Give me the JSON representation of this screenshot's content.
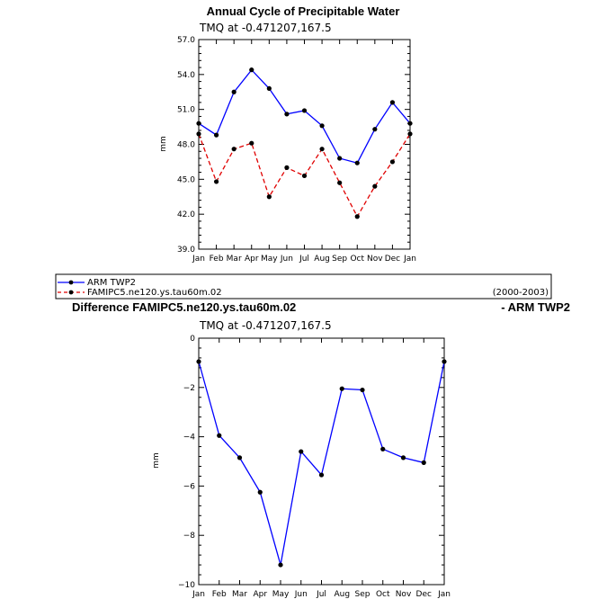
{
  "colors": {
    "series_blue": "#0000ff",
    "series_red": "#e00000",
    "marker": "#000000",
    "axes": "#000000"
  },
  "chart_data": [
    {
      "type": "line",
      "title": "Annual Cycle of Precipitable Water",
      "subtitle": "TMQ at -0.471207,167.5",
      "xlabel": "",
      "ylabel": "mm",
      "categories": [
        "Jan",
        "Feb",
        "Mar",
        "Apr",
        "May",
        "Jun",
        "Jul",
        "Aug",
        "Sep",
        "Oct",
        "Nov",
        "Dec",
        "Jan"
      ],
      "ylim": [
        39.0,
        57.0
      ],
      "yticks": [
        39.0,
        42.0,
        45.0,
        48.0,
        51.0,
        54.0,
        57.0
      ],
      "ytick_labels": [
        "39.0",
        "42.0",
        "45.0",
        "48.0",
        "51.0",
        "54.0",
        "57.0"
      ],
      "grid": false,
      "series": [
        {
          "name": "ARM TWP2",
          "color": "#0000ff",
          "dash": "solid",
          "values": [
            49.8,
            48.8,
            52.5,
            54.4,
            52.8,
            50.6,
            50.9,
            49.6,
            46.8,
            46.4,
            49.3,
            51.6,
            49.8
          ]
        },
        {
          "name": "FAMIPC5.ne120.ys.tau60m.02",
          "color": "#e00000",
          "dash": "dashed",
          "values": [
            48.9,
            44.8,
            47.6,
            48.1,
            43.5,
            46.0,
            45.3,
            47.6,
            44.7,
            41.8,
            44.4,
            46.5,
            48.9
          ]
        }
      ],
      "legend": {
        "position": "bottom",
        "entries": [
          "ARM TWP2",
          "FAMIPC5.ne120.ys.tau60m.02"
        ],
        "period": "(2000-2003)"
      }
    },
    {
      "type": "line",
      "title": "Difference FAMIPC5.ne120.ys.tau60m.02",
      "title_right": "- ARM TWP2",
      "subtitle": "TMQ at -0.471207,167.5",
      "xlabel": "",
      "ylabel": "mm",
      "categories": [
        "Jan",
        "Feb",
        "Mar",
        "Apr",
        "May",
        "Jun",
        "Jul",
        "Aug",
        "Sep",
        "Oct",
        "Nov",
        "Dec",
        "Jan"
      ],
      "ylim": [
        -10,
        0
      ],
      "yticks": [
        -10,
        -8,
        -6,
        -4,
        -2,
        0
      ],
      "ytick_labels": [
        "−10",
        "−8",
        "−6",
        "−4",
        "−2",
        "0"
      ],
      "grid": false,
      "series": [
        {
          "color": "#0000ff",
          "dash": "solid",
          "values": [
            -0.95,
            -3.95,
            -4.85,
            -6.25,
            -9.2,
            -4.6,
            -5.55,
            -2.05,
            -2.1,
            -4.5,
            -4.85,
            -5.05,
            -0.95
          ]
        }
      ]
    }
  ]
}
